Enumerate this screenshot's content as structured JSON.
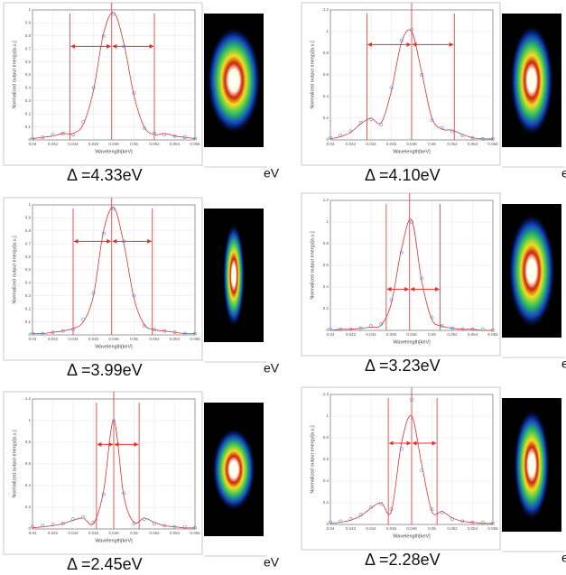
{
  "chart_data": [
    {
      "type": "line",
      "caption": "Δ =4.33eV",
      "unit": "eV",
      "xlabel": "Wavelength[keV]",
      "ylabel": "Normalized output energy[a.u.]",
      "grid": true,
      "x": [
        0.04,
        0.041,
        0.042,
        0.043,
        0.044,
        0.045,
        0.046,
        0.047,
        0.048,
        0.049,
        0.05,
        0.051,
        0.052,
        0.053,
        0.054,
        0.055,
        0.056
      ],
      "xlim": [
        0.04,
        0.056
      ],
      "xticks": [
        0.04,
        0.042,
        0.044,
        0.046,
        0.048,
        0.05,
        0.052,
        0.054,
        0.056
      ],
      "ylim": [
        0,
        1
      ],
      "yticks": [
        0,
        0.1,
        0.2,
        0.3,
        0.4,
        0.5,
        0.6,
        0.7,
        0.8,
        0.9,
        1
      ],
      "series": [
        {
          "color": "#e03030",
          "style": "line",
          "values": [
            0.01,
            0.02,
            0.03,
            0.05,
            0.05,
            0.12,
            0.38,
            0.82,
            0.98,
            0.74,
            0.34,
            0.1,
            0.04,
            0.05,
            0.03,
            0.02,
            0.01
          ]
        },
        {
          "color": "#5a8fd0",
          "style": "markers",
          "values": [
            0.01,
            0.02,
            0.04,
            0.05,
            0.04,
            0.14,
            0.4,
            0.8,
            0.97,
            0.72,
            0.36,
            0.09,
            0.05,
            0.04,
            0.03,
            0.02,
            0.01
          ]
        }
      ],
      "vlines": [
        0.0437,
        0.0478,
        0.052
      ],
      "arrow_y": 0.72
    },
    {
      "type": "line",
      "caption": "Δ =4.10eV",
      "unit": "eV",
      "xlabel": "Wavelength[keV]",
      "ylabel": "Normalized output energy[a.u.]",
      "grid": true,
      "x": [
        0.04,
        0.041,
        0.042,
        0.043,
        0.044,
        0.045,
        0.046,
        0.047,
        0.048,
        0.049,
        0.05,
        0.051,
        0.052,
        0.053,
        0.054,
        0.055,
        0.056
      ],
      "xlim": [
        0.04,
        0.056
      ],
      "xticks": [
        0.04,
        0.042,
        0.044,
        0.046,
        0.048,
        0.05,
        0.052,
        0.054,
        0.056
      ],
      "ylim": [
        0,
        1.2
      ],
      "yticks": [
        0,
        0.2,
        0.4,
        0.6,
        0.8,
        1,
        1.2
      ],
      "series": [
        {
          "color": "#e03030",
          "style": "line",
          "values": [
            0.01,
            0.03,
            0.07,
            0.15,
            0.2,
            0.16,
            0.45,
            0.9,
            1.0,
            0.62,
            0.2,
            0.1,
            0.09,
            0.05,
            0.02,
            0.01,
            0.01
          ]
        },
        {
          "color": "#5a8fd0",
          "style": "markers",
          "values": [
            0.02,
            0.04,
            0.08,
            0.16,
            0.19,
            0.14,
            0.48,
            0.92,
            1.02,
            0.6,
            0.18,
            0.11,
            0.08,
            0.04,
            0.02,
            0.01,
            0.01
          ]
        }
      ],
      "vlines": [
        0.0436,
        0.048,
        0.0522
      ],
      "arrow_y": 0.88
    },
    {
      "type": "line",
      "caption": "Δ =3.99eV",
      "unit": "eV",
      "xlabel": "Wavelength[keV]",
      "ylabel": "Normalized output energy[a.u.]",
      "grid": true,
      "x": [
        0.04,
        0.041,
        0.042,
        0.043,
        0.044,
        0.045,
        0.046,
        0.047,
        0.048,
        0.049,
        0.05,
        0.051,
        0.052,
        0.053,
        0.054,
        0.055,
        0.056
      ],
      "xlim": [
        0.04,
        0.056
      ],
      "xticks": [
        0.04,
        0.042,
        0.044,
        0.046,
        0.048,
        0.05,
        0.052,
        0.054,
        0.056
      ],
      "ylim": [
        0,
        1
      ],
      "yticks": [
        0,
        0.1,
        0.2,
        0.3,
        0.4,
        0.5,
        0.6,
        0.7,
        0.8,
        0.9,
        1
      ],
      "series": [
        {
          "color": "#e03030",
          "style": "line",
          "values": [
            0.01,
            0.01,
            0.02,
            0.03,
            0.05,
            0.1,
            0.3,
            0.8,
            0.98,
            0.7,
            0.28,
            0.08,
            0.04,
            0.03,
            0.02,
            0.01,
            0.01
          ]
        },
        {
          "color": "#5a8fd0",
          "style": "markers",
          "values": [
            0.01,
            0.01,
            0.02,
            0.03,
            0.04,
            0.12,
            0.32,
            0.78,
            0.97,
            0.72,
            0.3,
            0.07,
            0.04,
            0.03,
            0.02,
            0.01,
            0.01
          ]
        }
      ],
      "vlines": [
        0.044,
        0.0478,
        0.0518
      ],
      "arrow_y": 0.72
    },
    {
      "type": "line",
      "caption": "Δ =3.23eV",
      "unit": "eV",
      "xlabel": "Wavelength[keV]",
      "ylabel": "Normalized output energy[a.u.]",
      "grid": true,
      "x": [
        0.04,
        0.041,
        0.042,
        0.043,
        0.044,
        0.045,
        0.046,
        0.047,
        0.048,
        0.049,
        0.05,
        0.051,
        0.052,
        0.053,
        0.054,
        0.055,
        0.056
      ],
      "xlim": [
        0.04,
        0.056
      ],
      "xticks": [
        0.04,
        0.042,
        0.044,
        0.046,
        0.048,
        0.05,
        0.052,
        0.054,
        0.056
      ],
      "ylim": [
        0,
        1.2
      ],
      "yticks": [
        0,
        0.2,
        0.4,
        0.6,
        0.8,
        1,
        1.2
      ],
      "series": [
        {
          "color": "#e03030",
          "style": "line",
          "values": [
            0,
            0.01,
            0.01,
            0.02,
            0.03,
            0.05,
            0.25,
            0.75,
            1.02,
            0.45,
            0.1,
            0.04,
            0.02,
            0.01,
            0.01,
            0,
            0
          ]
        },
        {
          "color": "#5a8fd0",
          "style": "markers",
          "values": [
            0.01,
            0.01,
            0.01,
            0.02,
            0.04,
            0.06,
            0.28,
            0.72,
            1.0,
            0.48,
            0.12,
            0.04,
            0.02,
            0.01,
            0.01,
            0.01,
            0
          ]
        }
      ],
      "vlines": [
        0.0455,
        0.0478,
        0.0508
      ],
      "arrow_y": 0.38
    },
    {
      "type": "line",
      "caption": "Δ =2.45eV",
      "unit": "eV",
      "xlabel": "Wavelength[keV]",
      "ylabel": "Normalized output energy[a.u.]",
      "grid": true,
      "x": [
        0.04,
        0.041,
        0.042,
        0.043,
        0.044,
        0.045,
        0.046,
        0.047,
        0.048,
        0.049,
        0.05,
        0.051,
        0.052,
        0.053,
        0.054,
        0.055,
        0.056
      ],
      "xlim": [
        0.04,
        0.056
      ],
      "xticks": [
        0.04,
        0.042,
        0.044,
        0.046,
        0.048,
        0.05,
        0.052,
        0.054,
        0.056
      ],
      "ylim": [
        0,
        1.2
      ],
      "yticks": [
        0,
        0.2,
        0.4,
        0.6,
        0.8,
        1,
        1.2
      ],
      "series": [
        {
          "color": "#e03030",
          "style": "line",
          "values": [
            0.01,
            0.02,
            0.03,
            0.05,
            0.08,
            0.1,
            0.05,
            0.35,
            1.0,
            0.3,
            0.06,
            0.1,
            0.06,
            0.03,
            0.02,
            0.01,
            0.01
          ]
        },
        {
          "color": "#5a8fd0",
          "style": "markers",
          "values": [
            0.02,
            0.03,
            0.04,
            0.05,
            0.09,
            0.11,
            0.06,
            0.32,
            1.0,
            0.33,
            0.05,
            0.09,
            0.05,
            0.03,
            0.02,
            0.02,
            0.01
          ]
        }
      ],
      "vlines": [
        0.0463,
        0.048,
        0.0505
      ],
      "arrow_y": 0.78
    },
    {
      "type": "line",
      "caption": "Δ =2.28eV",
      "unit": "eV",
      "xlabel": "Wavelength[keV]",
      "ylabel": "Normalized output energy[a.u.]",
      "grid": true,
      "x": [
        0.04,
        0.041,
        0.042,
        0.043,
        0.044,
        0.045,
        0.046,
        0.047,
        0.048,
        0.049,
        0.05,
        0.051,
        0.052,
        0.053,
        0.054,
        0.055,
        0.056
      ],
      "xlim": [
        0.04,
        0.056
      ],
      "xticks": [
        0.04,
        0.042,
        0.044,
        0.046,
        0.048,
        0.05,
        0.052,
        0.054,
        0.056
      ],
      "ylim": [
        0,
        1.2
      ],
      "yticks": [
        0,
        0.2,
        0.4,
        0.6,
        0.8,
        1,
        1.2
      ],
      "series": [
        {
          "color": "#e03030",
          "style": "line",
          "values": [
            0.01,
            0.02,
            0.04,
            0.08,
            0.15,
            0.2,
            0.12,
            0.75,
            1.0,
            0.55,
            0.12,
            0.12,
            0.06,
            0.03,
            0.02,
            0.01,
            0.01
          ]
        },
        {
          "color": "#5a8fd0",
          "style": "markers",
          "values": [
            0.02,
            0.03,
            0.05,
            0.09,
            0.16,
            0.19,
            0.14,
            0.7,
            1.15,
            0.5,
            0.14,
            0.11,
            0.05,
            0.03,
            0.02,
            0.02,
            0.01
          ]
        }
      ],
      "vlines": [
        0.0457,
        0.048,
        0.0505
      ],
      "arrow_y": 0.75
    }
  ]
}
